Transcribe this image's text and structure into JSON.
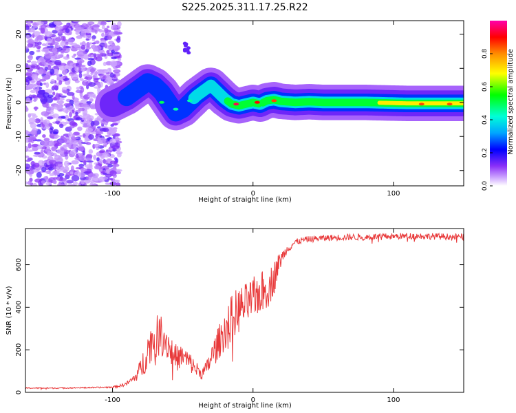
{
  "title": "S225.2025.311.17.25.R22",
  "chart_data": [
    {
      "type": "heatmap",
      "title": "S225.2025.311.17.25.R22",
      "xlabel": "Height of straight line (km)",
      "ylabel": "Frequency (Hz)",
      "xlim": [
        -162,
        150
      ],
      "ylim": [
        -24.5,
        24
      ],
      "xticks": [
        -100,
        0,
        100
      ],
      "yticks": [
        -20,
        -10,
        0,
        10,
        20
      ],
      "colorbar": {
        "label": "Normalized spectral amplitude",
        "range": [
          0,
          1
        ],
        "ticks": [
          0.0,
          0.2,
          0.4,
          0.6,
          0.8
        ],
        "tick_labels": [
          "0.0",
          "0.2",
          "0.4",
          "0.6",
          "0.8"
        ],
        "colors": [
          "#ffffff",
          "#c9a3ff",
          "#7a1cf5",
          "#0000ff",
          "#00a5ff",
          "#00ffd8",
          "#00ff00",
          "#ffff00",
          "#ff8c00",
          "#ff0000",
          "#ff00aa"
        ]
      },
      "ridge": {
        "x": [
          -100,
          -95,
          -90,
          -85,
          -80,
          -75,
          -70,
          -65,
          -60,
          -55,
          -50,
          -45,
          -40,
          -35,
          -30,
          -25,
          -20,
          -15,
          -10,
          -5,
          0,
          5,
          10,
          15,
          20,
          30,
          40,
          50,
          60,
          70,
          80,
          90,
          100,
          110,
          120,
          130,
          140,
          150
        ],
        "y": [
          -0.5,
          0.5,
          1.5,
          3,
          4.5,
          6,
          5,
          3,
          0,
          -3,
          -2,
          0,
          2,
          3.5,
          5,
          3,
          1,
          -0.5,
          -1,
          -0.5,
          0,
          -0.5,
          0.5,
          0.8,
          0.3,
          0,
          0.2,
          0,
          0,
          0,
          0,
          -0.1,
          -0.2,
          -0.3,
          -0.3,
          -0.3,
          -0.3,
          -0.3
        ],
        "amplitude": [
          0.15,
          0.2,
          0.25,
          0.25,
          0.25,
          0.3,
          0.3,
          0.3,
          0.3,
          0.3,
          0.35,
          0.35,
          0.4,
          0.45,
          0.5,
          0.45,
          0.5,
          0.55,
          0.6,
          0.55,
          0.6,
          0.5,
          0.55,
          0.6,
          0.55,
          0.55,
          0.55,
          0.6,
          0.6,
          0.6,
          0.65,
          0.7,
          0.75,
          0.8,
          0.75,
          0.7,
          0.7,
          0.7
        ]
      },
      "hotspots": [
        {
          "x": -12,
          "y": -0.5,
          "amplitude": 0.95
        },
        {
          "x": 3,
          "y": 0,
          "amplitude": 0.9
        },
        {
          "x": 15,
          "y": 0.5,
          "amplitude": 0.85
        },
        {
          "x": -65,
          "y": 0,
          "amplitude": 0.5
        },
        {
          "x": -45,
          "y": 0.5,
          "amplitude": 0.45
        },
        {
          "x": -55,
          "y": -2,
          "amplitude": 0.45
        },
        {
          "x": 120,
          "y": -0.5,
          "amplitude": 0.85
        },
        {
          "x": 140,
          "y": -0.5,
          "amplitude": 0.85
        }
      ],
      "isolated_feature": {
        "x": -47,
        "y": 16,
        "amplitude": 0.15
      },
      "noise_region_x": [
        -162,
        -95
      ]
    },
    {
      "type": "line",
      "xlabel": "Height of straight line (km)",
      "ylabel": "SNR (10 * v/v)",
      "xlim": [
        -162,
        150
      ],
      "ylim": [
        0,
        770
      ],
      "xticks": [
        -100,
        0,
        100
      ],
      "yticks": [
        0,
        200,
        400,
        600
      ],
      "color": "#e8393a",
      "x": [
        -162,
        -150,
        -140,
        -130,
        -120,
        -110,
        -100,
        -95,
        -90,
        -87,
        -84,
        -81,
        -78,
        -75,
        -72,
        -69,
        -66,
        -63,
        -60,
        -57,
        -54,
        -51,
        -48,
        -45,
        -42,
        -39,
        -36,
        -33,
        -30,
        -27,
        -24,
        -21,
        -18,
        -15,
        -12,
        -9,
        -6,
        -3,
        0,
        3,
        6,
        9,
        12,
        15,
        18,
        21,
        24,
        27,
        30,
        35,
        40,
        50,
        60,
        70,
        80,
        90,
        100,
        110,
        120,
        130,
        140,
        150
      ],
      "y": [
        20,
        20,
        20,
        21,
        22,
        23,
        25,
        30,
        40,
        55,
        70,
        100,
        140,
        200,
        240,
        260,
        270,
        260,
        220,
        180,
        160,
        170,
        160,
        140,
        120,
        100,
        90,
        110,
        160,
        200,
        240,
        280,
        320,
        350,
        380,
        390,
        410,
        420,
        440,
        460,
        470,
        480,
        500,
        540,
        600,
        640,
        670,
        690,
        705,
        715,
        720,
        725,
        728,
        730,
        730,
        732,
        733,
        735,
        735,
        733,
        732,
        730
      ],
      "noise_amplitude": [
        3,
        3,
        3,
        3,
        3,
        3,
        4,
        6,
        10,
        15,
        20,
        40,
        70,
        80,
        90,
        100,
        100,
        90,
        80,
        70,
        60,
        55,
        50,
        50,
        40,
        35,
        30,
        40,
        55,
        70,
        80,
        90,
        100,
        110,
        110,
        110,
        100,
        100,
        100,
        100,
        100,
        100,
        90,
        80,
        50,
        30,
        20,
        20,
        15,
        15,
        15,
        15,
        15,
        15,
        15,
        15,
        15,
        15,
        15,
        15,
        15,
        15
      ]
    }
  ]
}
